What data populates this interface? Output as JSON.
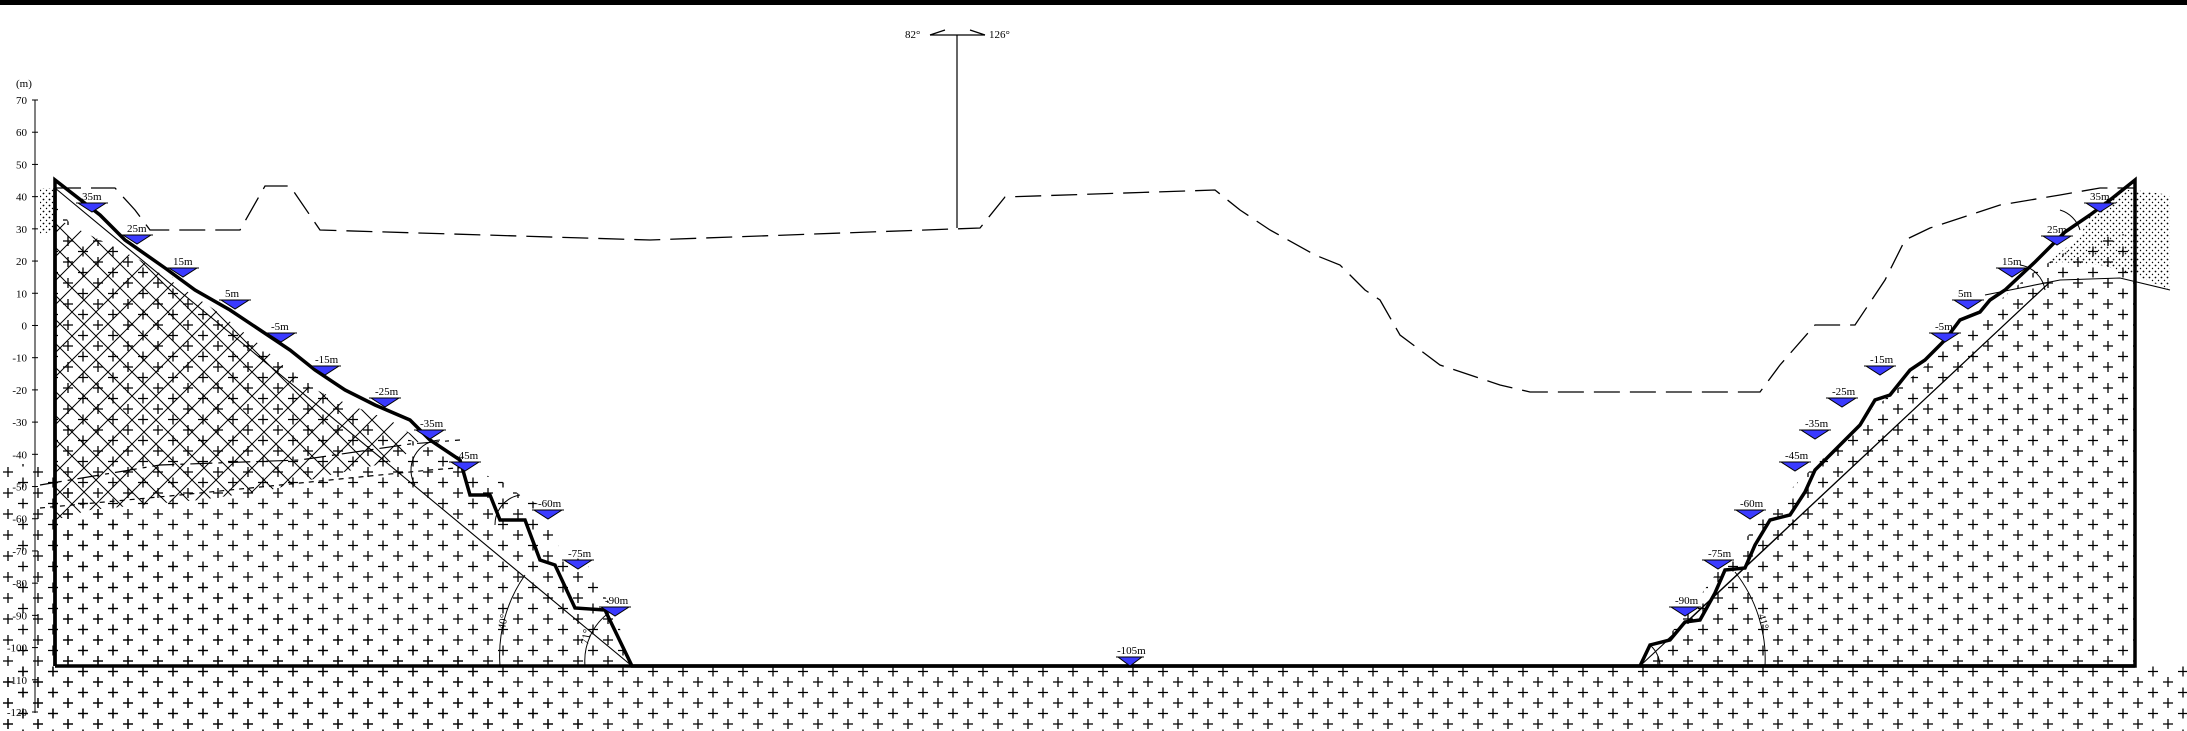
{
  "axis": {
    "unit": "(m)",
    "ticks": [
      70,
      60,
      50,
      40,
      30,
      20,
      10,
      0,
      -10,
      -20,
      -30,
      -40,
      -50,
      -60,
      -70,
      -80,
      -90,
      -100,
      -110,
      -120
    ]
  },
  "compass": {
    "left": "82°",
    "right": "126°"
  },
  "left_benches": [
    "35m",
    "25m",
    "15m",
    "5m",
    "-5m",
    "-15m",
    "-25m",
    "-35m",
    "-45m",
    "-60m",
    "-75m",
    "-90m"
  ],
  "right_benches": [
    "35m",
    "25m",
    "15m",
    "5m",
    "-5m",
    "-15m",
    "-25m",
    "-35m",
    "-45m",
    "-60m",
    "-75m",
    "-90m"
  ],
  "pit_bottom": "-105m",
  "angles": {
    "left_overall": "40°",
    "left_lower": "71°",
    "right_overall": "41°"
  },
  "colors": {
    "marker_fill": "#3a3aff",
    "line": "#000000"
  }
}
